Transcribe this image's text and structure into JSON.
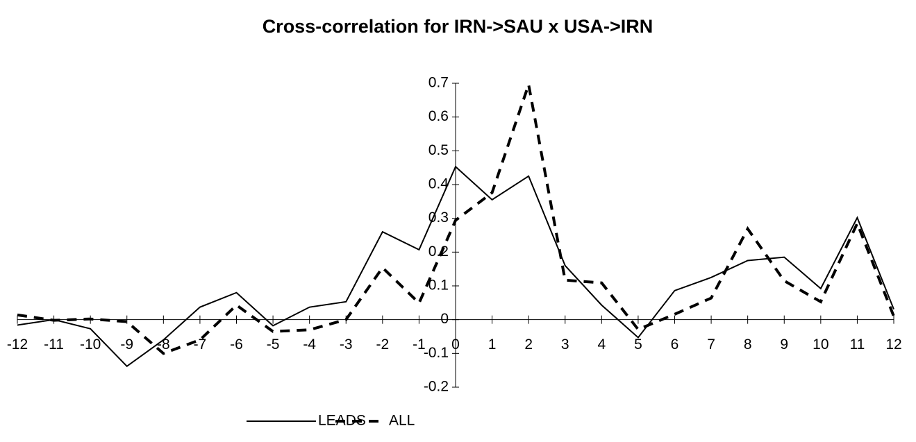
{
  "chart_data": {
    "type": "line",
    "title": "Cross-correlation for IRN->SAU x USA->IRN",
    "x": [
      -12,
      -11,
      -10,
      -9,
      -8,
      -7,
      -6,
      -5,
      -4,
      -3,
      -2,
      -1,
      0,
      1,
      2,
      3,
      4,
      5,
      6,
      7,
      8,
      9,
      10,
      11,
      12
    ],
    "series": [
      {
        "name": "LEADS",
        "color": "#000000",
        "style": "solid",
        "values": [
          -0.016,
          0.0,
          -0.027,
          -0.138,
          -0.06,
          0.037,
          0.08,
          -0.018,
          0.037,
          0.053,
          0.26,
          0.207,
          0.453,
          0.355,
          0.425,
          0.16,
          0.043,
          -0.053,
          0.086,
          0.125,
          0.175,
          0.185,
          0.092,
          0.302,
          0.031
        ]
      },
      {
        "name": "ALL",
        "color": "#000000",
        "style": "dashed",
        "values": [
          0.014,
          -0.002,
          0.002,
          -0.006,
          -0.1,
          -0.06,
          0.043,
          -0.035,
          -0.03,
          0.0,
          0.154,
          0.049,
          0.294,
          0.376,
          0.696,
          0.117,
          0.109,
          -0.029,
          0.016,
          0.064,
          0.269,
          0.115,
          0.053,
          0.285,
          0.01
        ]
      }
    ],
    "xlim": [
      -12,
      12
    ],
    "xticks": [
      -12,
      -11,
      -10,
      -9,
      -8,
      -7,
      -6,
      -5,
      -4,
      -3,
      -2,
      -1,
      0,
      1,
      2,
      3,
      4,
      5,
      6,
      7,
      8,
      9,
      10,
      11,
      12
    ],
    "ylim": [
      -0.2,
      0.7
    ],
    "yticks": [
      -0.2,
      -0.1,
      0,
      0.1,
      0.2,
      0.3,
      0.4,
      0.5,
      0.6,
      0.7
    ],
    "grid": false,
    "legend": "bottom"
  }
}
